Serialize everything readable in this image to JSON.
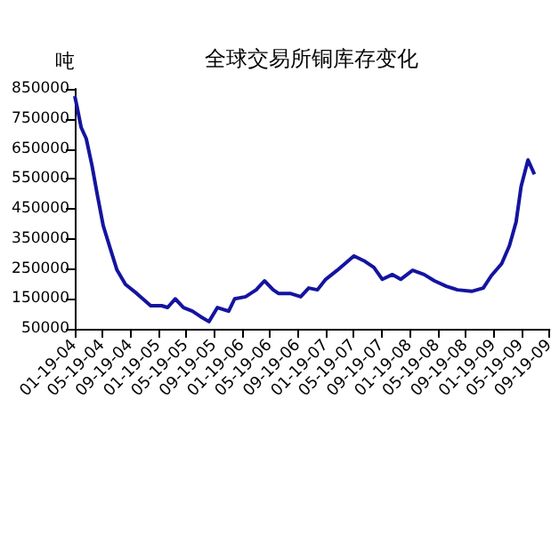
{
  "chart_data": {
    "type": "line",
    "title": "全球交易所铜库存变化",
    "ylabel": "吨",
    "x": [
      "2004-01-19",
      "2004-01-29",
      "2004-02-16",
      "2004-03-09",
      "2004-04-03",
      "2004-04-27",
      "2004-05-22",
      "2004-06-22",
      "2004-07-21",
      "2004-08-27",
      "2004-10-15",
      "2004-12-15",
      "2005-02-01",
      "2005-02-27",
      "2005-04-01",
      "2005-05-07",
      "2005-06-15",
      "2005-07-20",
      "2005-08-26",
      "2005-10-02",
      "2005-11-20",
      "2005-12-16",
      "2006-02-02",
      "2006-03-20",
      "2006-04-25",
      "2006-06-02",
      "2006-06-25",
      "2006-08-15",
      "2006-09-30",
      "2006-11-04",
      "2006-12-12",
      "2007-01-17",
      "2007-03-08",
      "2007-05-20",
      "2007-07-07",
      "2007-08-15",
      "2007-09-21",
      "2007-11-04",
      "2007-12-10",
      "2008-01-31",
      "2008-03-21",
      "2008-05-05",
      "2008-06-26",
      "2008-08-13",
      "2008-10-14",
      "2008-12-04",
      "2009-01-08",
      "2009-02-22",
      "2009-03-28",
      "2009-04-26",
      "2009-05-18",
      "2009-06-17",
      "2009-07-15"
    ],
    "series": [
      {
        "color": "#1414a0",
        "values": [
          826000,
          790000,
          721000,
          684000,
          595000,
          494000,
          394000,
          317000,
          246000,
          198000,
          168000,
          127000,
          127000,
          121000,
          150000,
          121000,
          109000,
          91000,
          74000,
          121000,
          109000,
          150000,
          157000,
          180000,
          210000,
          180000,
          168000,
          168000,
          157000,
          186000,
          180000,
          215000,
          245000,
          293000,
          275000,
          255000,
          215000,
          231000,
          215000,
          245000,
          231000,
          210000,
          192000,
          180000,
          175000,
          186000,
          227000,
          267000,
          327000,
          406000,
          525000,
          613000,
          565000
        ]
      }
    ],
    "ylim": [
      50000,
      850000
    ],
    "yticks": [
      50000,
      150000,
      250000,
      350000,
      450000,
      550000,
      650000,
      750000,
      850000
    ],
    "xlim": [
      "2004-01-19",
      "2009-09-19"
    ],
    "xticks": [
      {
        "value": "2004-01-19",
        "label": "01-19-04"
      },
      {
        "value": "2004-05-19",
        "label": "05-19-04"
      },
      {
        "value": "2004-09-19",
        "label": "09-19-04"
      },
      {
        "value": "2005-01-19",
        "label": "01-19-05"
      },
      {
        "value": "2005-05-19",
        "label": "05-19-05"
      },
      {
        "value": "2005-09-19",
        "label": "09-19-05"
      },
      {
        "value": "2006-01-19",
        "label": "01-19-06"
      },
      {
        "value": "2006-05-19",
        "label": "05-19-06"
      },
      {
        "value": "2006-09-19",
        "label": "09-19-06"
      },
      {
        "value": "2007-01-19",
        "label": "01-19-07"
      },
      {
        "value": "2007-05-19",
        "label": "05-19-07"
      },
      {
        "value": "2007-09-19",
        "label": "09-19-07"
      },
      {
        "value": "2008-01-19",
        "label": "01-19-08"
      },
      {
        "value": "2008-05-19",
        "label": "05-19-08"
      },
      {
        "value": "2008-09-19",
        "label": "09-19-08"
      },
      {
        "value": "2009-01-19",
        "label": "01-19-09"
      },
      {
        "value": "2009-05-19",
        "label": "05-19-09"
      },
      {
        "value": "2009-09-19",
        "label": "09-19-09"
      }
    ],
    "marker": "none",
    "line_style": "solid"
  }
}
